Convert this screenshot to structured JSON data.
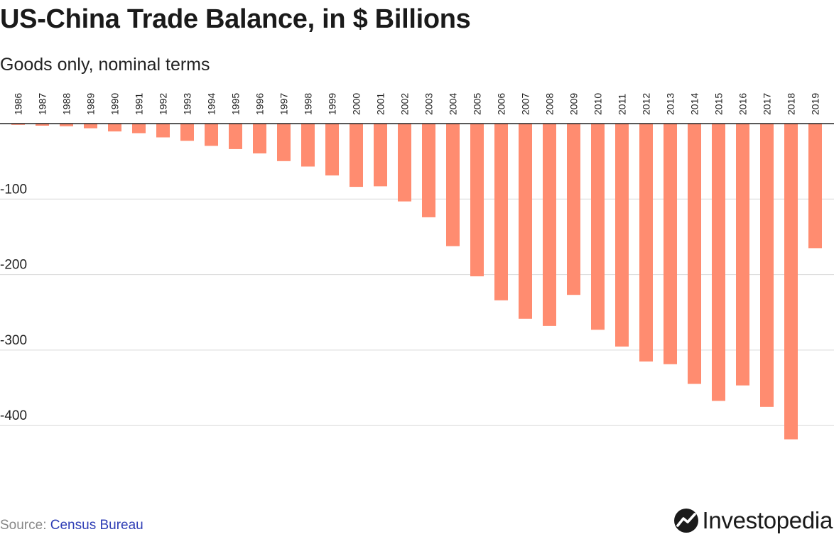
{
  "title": "US-China Trade Balance, in $ Billions",
  "subtitle": "Goods only, nominal terms",
  "footer": {
    "source_label": "Source: ",
    "source_name": "Census Bureau",
    "brand": "Investopedia",
    "brand_icon": "investopedia-logo-icon"
  },
  "colors": {
    "bar": "#ff8c70",
    "grid": "#d9d9d9",
    "zero_line": "#222222"
  },
  "chart_data": {
    "type": "bar",
    "title": "US-China Trade Balance, in $ Billions",
    "subtitle": "Goods only, nominal terms",
    "xlabel": "",
    "ylabel": "",
    "ylim": [
      -440,
      0
    ],
    "yticks": [
      -100,
      -200,
      -300,
      -400
    ],
    "ytick_labels": [
      "-100",
      "-200",
      "-300",
      "-400"
    ],
    "grid": true,
    "x_labels_position": "top",
    "categories": [
      "1986",
      "1987",
      "1988",
      "1989",
      "1990",
      "1991",
      "1992",
      "1993",
      "1994",
      "1995",
      "1996",
      "1997",
      "1998",
      "1999",
      "2000",
      "2001",
      "2002",
      "2003",
      "2004",
      "2005",
      "2006",
      "2007",
      "2008",
      "2009",
      "2010",
      "2011",
      "2012",
      "2013",
      "2014",
      "2015",
      "2016",
      "2017",
      "2018",
      "2019"
    ],
    "values": [
      -1.7,
      -2.8,
      -3.5,
      -6.2,
      -10.4,
      -12.7,
      -18.3,
      -22.8,
      -29.5,
      -33.8,
      -39.5,
      -49.7,
      -56.9,
      -68.7,
      -83.8,
      -83.1,
      -103.1,
      -124.1,
      -162.3,
      -202.3,
      -234.1,
      -258.5,
      -268.0,
      -226.9,
      -273.1,
      -295.3,
      -315.1,
      -318.7,
      -344.8,
      -367.3,
      -346.8,
      -375.2,
      -418.2,
      -165.0
    ]
  }
}
